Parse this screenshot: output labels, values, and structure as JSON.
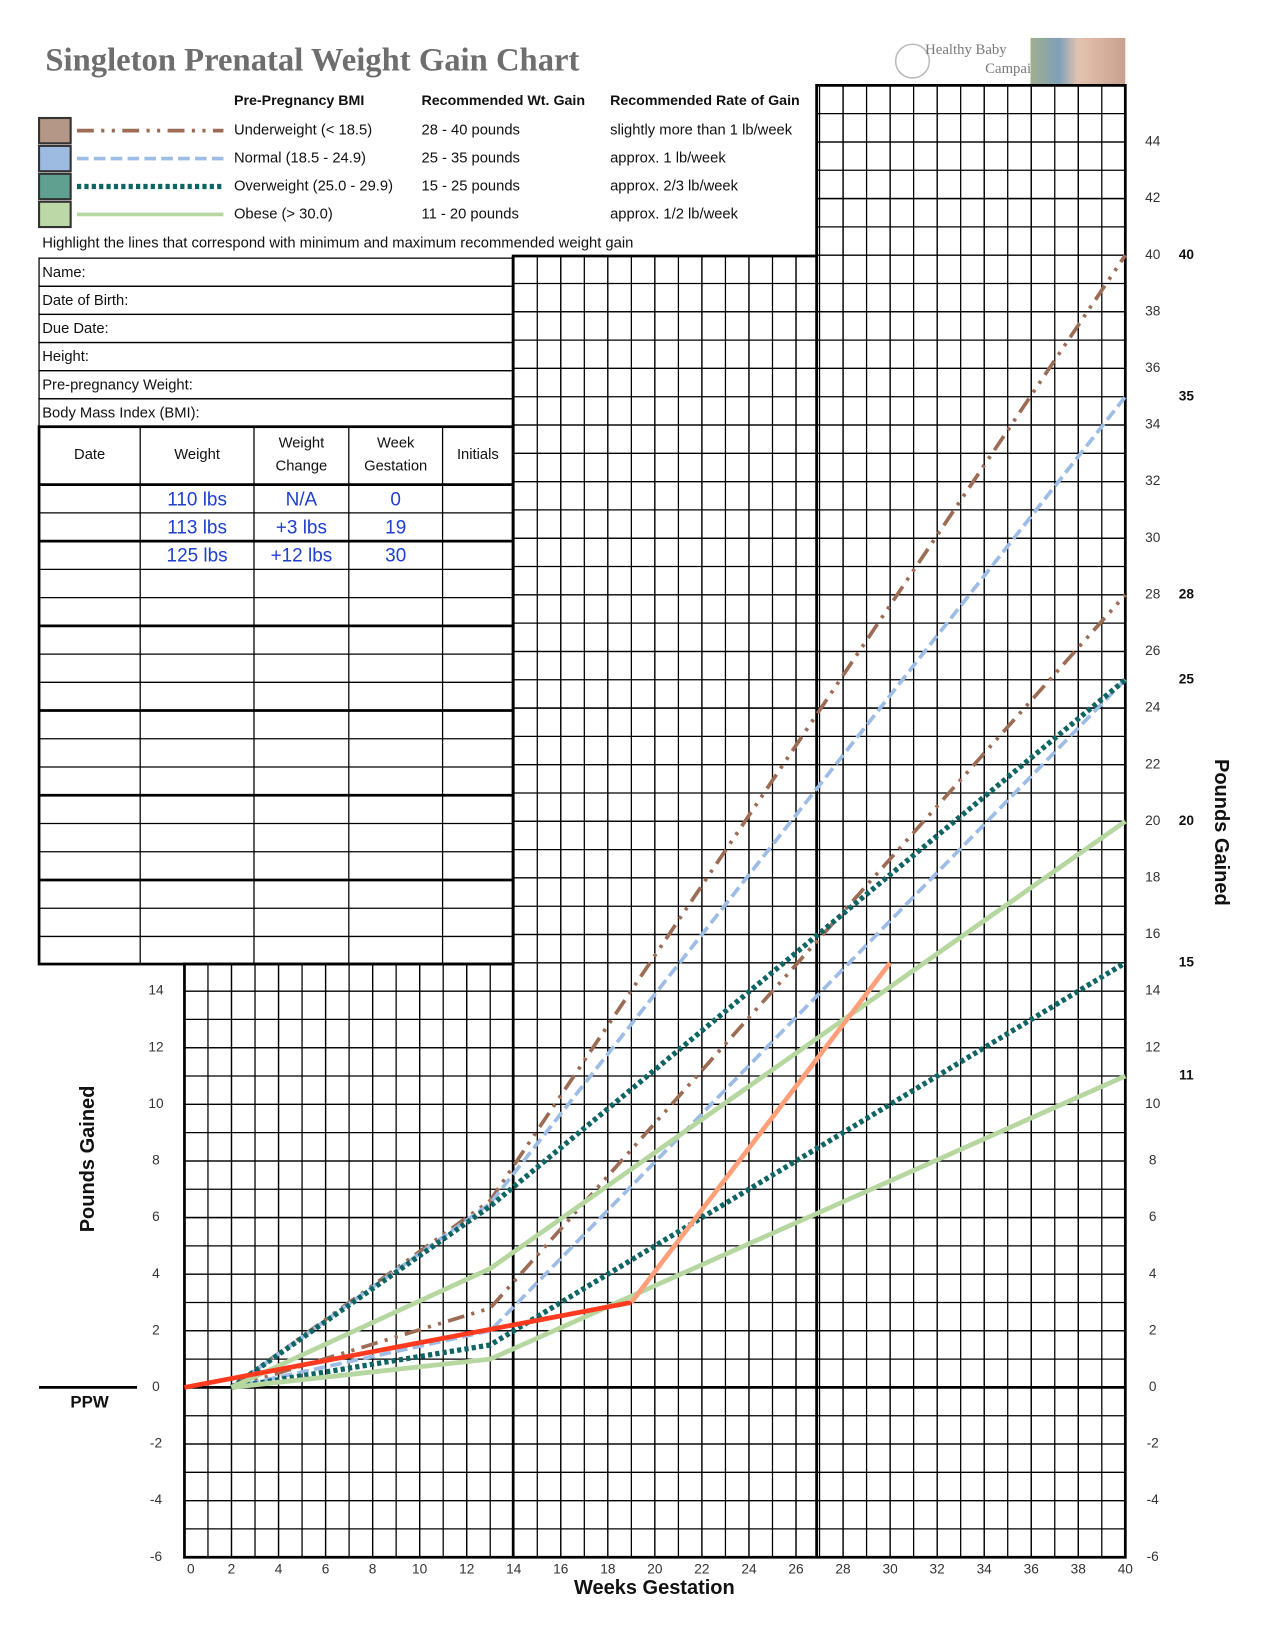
{
  "header": {
    "title": "Singleton Prenatal Weight Gain Chart",
    "logo": [
      "Healthy Baby",
      "Campaign"
    ]
  },
  "legend": {
    "headers": [
      "Pre-Pregnancy BMI",
      "Recommended Wt. Gain",
      "Recommended Rate of Gain"
    ],
    "rows": [
      {
        "swatch": "#b59787",
        "cells": [
          "Underweight (< 18.5)",
          "28 - 40 pounds",
          "slightly more than 1 lb/week"
        ]
      },
      {
        "swatch": "#9dbbe0",
        "cells": [
          "Normal (18.5 - 24.9)",
          "25 - 35 pounds",
          "approx. 1 lb/week"
        ]
      },
      {
        "swatch": "#5fa090",
        "cells": [
          "Overweight (25.0 - 29.9)",
          "15 - 25 pounds",
          "approx. 2/3 lb/week"
        ]
      },
      {
        "swatch": "#bcd8a6",
        "cells": [
          "Obese (> 30.0)",
          "11 - 20 pounds",
          "approx. 1/2 lb/week"
        ]
      }
    ],
    "note": "Highlight the lines that correspond with minimum and maximum recommended weight gain"
  },
  "form": {
    "fields": [
      "Name:",
      "Date of Birth:",
      "Due Date:",
      "Height:",
      "Pre-pregnancy Weight:",
      "Body Mass Index (BMI):"
    ]
  },
  "patient_table": {
    "headers": [
      "Date",
      "Weight",
      [
        "Weight",
        "Change"
      ],
      [
        "Week",
        "Gestation"
      ],
      "Initials"
    ],
    "rows": [
      {
        "weight": "110 lbs",
        "change": "N/A",
        "week": 0
      },
      {
        "weight": "113 lbs",
        "change": "+3 lbs",
        "week": 19
      },
      {
        "weight": "125 lbs",
        "change": "+12 lbs",
        "week": 30
      }
    ]
  },
  "chart_data": {
    "type": "line",
    "xlabel": "Weeks Gestation",
    "ylabel": "Pounds Gained",
    "y2label": "Pounds Gained",
    "baseline_label": "PPW",
    "xlim": [
      0,
      40
    ],
    "ylim": [
      -6,
      46
    ],
    "xticks": [
      0,
      2,
      4,
      6,
      8,
      10,
      12,
      14,
      16,
      18,
      20,
      22,
      24,
      26,
      28,
      30,
      32,
      34,
      36,
      38,
      40
    ],
    "yticks": [
      -6,
      -4,
      -2,
      0,
      2,
      4,
      6,
      8,
      10,
      12,
      14
    ],
    "y2ticks": [
      -6,
      -4,
      -2,
      0,
      2,
      4,
      6,
      8,
      10,
      12,
      14,
      16,
      18,
      20,
      22,
      24,
      26,
      28,
      30,
      32,
      34,
      36,
      38,
      40,
      42,
      44
    ],
    "end_labels": [
      40,
      35,
      28,
      25,
      20,
      15,
      11
    ],
    "grid": true,
    "minor_grid_step": 1,
    "series": [
      {
        "color": "#9c6c55",
        "dash": "16 7 3 7 3 7",
        "x": [
          2,
          13,
          40
        ],
        "values": [
          0,
          6.6,
          40
        ]
      },
      {
        "color": "#9c6c55",
        "dash": "16 7 3 7 3 7",
        "x": [
          2,
          13,
          40
        ],
        "values": [
          0,
          2.8,
          28
        ]
      },
      {
        "color": "#9dbce6",
        "dash": "11 5",
        "x": [
          2,
          13,
          40
        ],
        "values": [
          0,
          6.5,
          35
        ]
      },
      {
        "color": "#9dbce6",
        "dash": "11 5",
        "x": [
          2,
          13,
          40
        ],
        "values": [
          0,
          2,
          25
        ]
      },
      {
        "color": "#0f6464",
        "dash": "4 3",
        "x": [
          2,
          13,
          40
        ],
        "values": [
          0,
          6.4,
          25
        ]
      },
      {
        "color": "#0f6464",
        "dash": "4 3",
        "x": [
          2,
          13,
          40
        ],
        "values": [
          0,
          1.5,
          15
        ]
      },
      {
        "color": "#b6d7a0",
        "x": [
          2,
          13,
          40
        ],
        "values": [
          0,
          4.2,
          20
        ]
      },
      {
        "color": "#b6d7a0",
        "x": [
          2,
          13,
          40
        ],
        "values": [
          0,
          1,
          11
        ]
      },
      {
        "color": "#ff3a1e",
        "x": [
          0,
          19
        ],
        "values": [
          0,
          3
        ]
      },
      {
        "color": "#ffa07a",
        "x": [
          19,
          30
        ],
        "values": [
          3,
          15
        ]
      }
    ]
  }
}
